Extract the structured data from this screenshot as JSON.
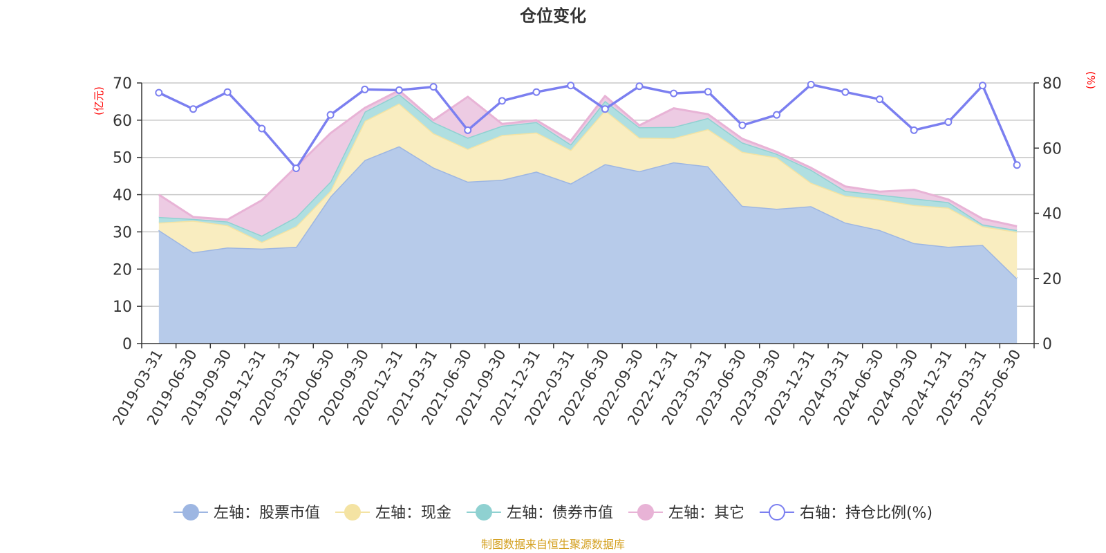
{
  "chart_data": {
    "type": "area",
    "title": "仓位变化",
    "left_axis_unit": "(亿元)",
    "right_axis_unit": "(%)",
    "left_ylim": [
      0,
      70
    ],
    "left_yticks": [
      0,
      10,
      20,
      30,
      40,
      50,
      60,
      70
    ],
    "right_ylim": [
      0,
      80
    ],
    "right_yticks": [
      0,
      20,
      40,
      60,
      80
    ],
    "grid": true,
    "legend_position": "bottom",
    "categories": [
      "2019-03-31",
      "2019-06-30",
      "2019-09-30",
      "2019-12-31",
      "2020-03-31",
      "2020-06-30",
      "2020-09-30",
      "2020-12-31",
      "2021-03-31",
      "2021-06-30",
      "2021-09-30",
      "2021-12-31",
      "2022-03-31",
      "2022-06-30",
      "2022-09-30",
      "2022-12-31",
      "2023-03-31",
      "2023-06-30",
      "2023-09-30",
      "2023-12-31",
      "2024-03-31",
      "2024-06-30",
      "2024-09-30",
      "2024-12-31",
      "2025-03-31",
      "2025-06-30"
    ],
    "series": [
      {
        "name": "左轴：股票市值",
        "axis": "left",
        "kind": "stacked-area",
        "color": "#9db6e2",
        "fill": "#b7cbea",
        "values": [
          30.5,
          24.5,
          25.8,
          25.5,
          26.0,
          39.5,
          49.3,
          53.0,
          47.3,
          43.5,
          44.0,
          46.2,
          43.0,
          48.2,
          46.3,
          48.7,
          47.6,
          37.0,
          36.2,
          36.9,
          32.5,
          30.5,
          27.0,
          26.0,
          26.5,
          17.5
        ]
      },
      {
        "name": "左轴：现金",
        "axis": "left",
        "kind": "stacked-area",
        "color": "#f4e3a3",
        "fill": "#f9edc0",
        "values": [
          2.0,
          8.5,
          6.0,
          1.8,
          5.5,
          1.5,
          10.5,
          11.5,
          9.2,
          8.8,
          12.0,
          10.5,
          9.0,
          14.5,
          9.0,
          6.5,
          10.0,
          14.5,
          13.8,
          6.3,
          7.2,
          8.2,
          10.2,
          10.5,
          5.0,
          12.5
        ]
      },
      {
        "name": "左轴：债券市值",
        "axis": "left",
        "kind": "stacked-area",
        "color": "#8fd1d1",
        "fill": "#b0dfe1",
        "values": [
          1.5,
          0.5,
          1.0,
          1.7,
          2.5,
          2.5,
          2.5,
          2.5,
          3.0,
          3.0,
          2.5,
          2.8,
          1.5,
          2.5,
          2.8,
          3.0,
          3.0,
          2.5,
          1.0,
          3.5,
          1.3,
          1.3,
          1.8,
          1.5,
          0.5,
          0.5
        ]
      },
      {
        "name": "左轴：其它",
        "axis": "left",
        "kind": "stacked-area",
        "color": "#e8b3d6",
        "fill": "#edcbe3",
        "values": [
          6.0,
          0.5,
          0.5,
          9.5,
          13.5,
          13.0,
          1.0,
          1.0,
          0.5,
          11.0,
          0.5,
          0.5,
          1.0,
          1.3,
          0.5,
          5.0,
          1.0,
          1.0,
          0.5,
          0.5,
          1.2,
          0.8,
          2.3,
          0.7,
          1.5,
          1.0
        ]
      },
      {
        "name": "右轴：持仓比例(%)",
        "axis": "right",
        "kind": "line",
        "color": "#7b7ff0",
        "values": [
          77.0,
          72.0,
          77.2,
          66.0,
          53.8,
          70.2,
          78.0,
          77.8,
          78.8,
          65.5,
          74.5,
          77.2,
          79.2,
          72.0,
          79.0,
          76.8,
          77.3,
          67.0,
          70.2,
          79.5,
          77.2,
          75.0,
          65.5,
          68.0,
          79.2,
          54.8
        ]
      }
    ]
  },
  "footer": {
    "source": "制图数据来自恒生聚源数据库",
    "source_color": "#d4a020"
  }
}
